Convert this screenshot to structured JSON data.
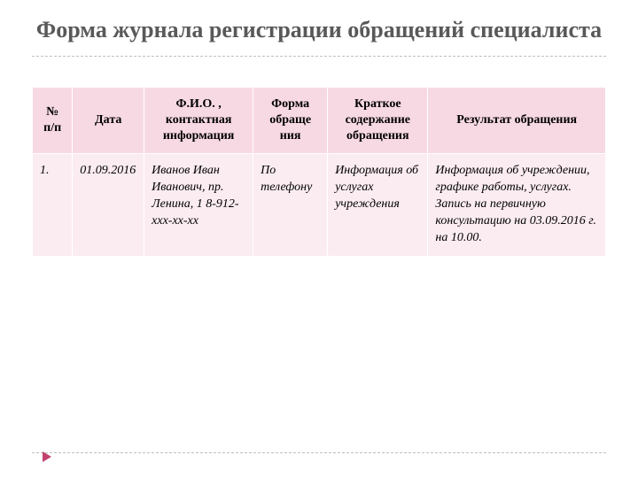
{
  "title": "Форма журнала регистрации обращений специалиста",
  "colors": {
    "title_text": "#595959",
    "dashed_line": "#bfbfbf",
    "th_bg": "#f7d9e3",
    "td_bg": "#fbecf1",
    "cell_border": "#ffffff",
    "marker": "#c24270",
    "background": "#ffffff"
  },
  "typography": {
    "title_fontsize": 26,
    "header_fontsize": 14,
    "cell_fontsize": 14,
    "cell_style": "italic",
    "font_family": "Georgia, Times New Roman, serif"
  },
  "table": {
    "type": "table",
    "columns": [
      {
        "key": "num",
        "label": "№ п/п",
        "width_pct": 7,
        "align": "center"
      },
      {
        "key": "date",
        "label": "Дата",
        "width_pct": 12.5,
        "align": "center"
      },
      {
        "key": "fio",
        "label": "Ф.И.О. , контактная информация",
        "width_pct": 19,
        "align": "center"
      },
      {
        "key": "form",
        "label": "Форма обраще ния",
        "width_pct": 13,
        "align": "center"
      },
      {
        "key": "brief",
        "label": "Краткое содержание обращения",
        "width_pct": 17.5,
        "align": "center"
      },
      {
        "key": "result",
        "label": "Результат обращения",
        "width_pct": 31,
        "align": "center"
      }
    ],
    "rows": [
      {
        "num": "1.",
        "date": "01.09.2016",
        "fio": "Иванов Иван Иванович, пр. Ленина, 1 8-912-ххх-хх-хх",
        "form": "По телефону",
        "brief": "Информация об услугах учреждения",
        "result": "Информация об учреждении, графике работы, услугах. Запись на первичную консультацию на 03.09.2016 г. на 10.00."
      }
    ]
  }
}
